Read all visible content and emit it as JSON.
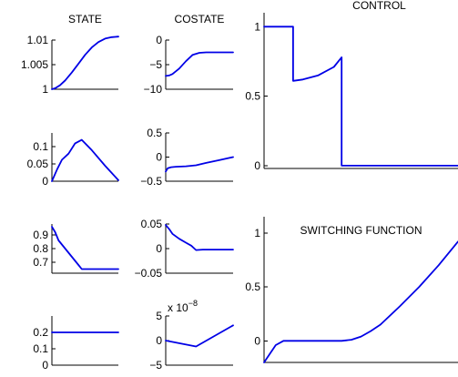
{
  "chart_data": [
    {
      "type": "line",
      "panel": "state_1",
      "title": "STATE",
      "xlim": [
        0,
        1
      ],
      "ylim": [
        1,
        1.01
      ],
      "yticks": [
        {
          "v": 1,
          "label": "1"
        },
        {
          "v": 1.005,
          "label": "1.005"
        },
        {
          "v": 1.01,
          "label": "1.01"
        }
      ],
      "series": [
        {
          "x": [
            0,
            0.05,
            0.12,
            0.2,
            0.3,
            0.4,
            0.5,
            0.6,
            0.7,
            0.8,
            0.9,
            1
          ],
          "y": [
            1.0,
            1.0002,
            1.0008,
            1.0018,
            1.0034,
            1.0052,
            1.007,
            1.0085,
            1.0096,
            1.0103,
            1.0106,
            1.0107
          ]
        }
      ]
    },
    {
      "type": "line",
      "panel": "state_2",
      "title": "",
      "xlim": [
        0,
        1
      ],
      "ylim": [
        0,
        0.14
      ],
      "yticks": [
        {
          "v": 0,
          "label": "0"
        },
        {
          "v": 0.05,
          "label": "0.05"
        },
        {
          "v": 0.1,
          "label": "0.1"
        }
      ],
      "series": [
        {
          "x": [
            0,
            0.08,
            0.15,
            0.25,
            0.35,
            0.45,
            0.6,
            0.8,
            1
          ],
          "y": [
            0,
            0.035,
            0.062,
            0.08,
            0.11,
            0.12,
            0.09,
            0.045,
            0.003
          ]
        }
      ]
    },
    {
      "type": "line",
      "panel": "state_3",
      "title": "",
      "xlim": [
        0,
        1
      ],
      "ylim": [
        0.62,
        0.98
      ],
      "yticks": [
        {
          "v": 0.7,
          "label": "0.7"
        },
        {
          "v": 0.8,
          "label": "0.8"
        },
        {
          "v": 0.9,
          "label": "0.9"
        }
      ],
      "series": [
        {
          "x": [
            0,
            0.05,
            0.1,
            0.2,
            0.3,
            0.4,
            0.45,
            0.6,
            0.8,
            1
          ],
          "y": [
            0.96,
            0.92,
            0.86,
            0.8,
            0.74,
            0.68,
            0.65,
            0.65,
            0.65,
            0.65
          ]
        }
      ]
    },
    {
      "type": "line",
      "panel": "state_4",
      "title": "",
      "xlim": [
        0,
        1
      ],
      "ylim": [
        0,
        0.3
      ],
      "yticks": [
        {
          "v": 0,
          "label": "0"
        },
        {
          "v": 0.1,
          "label": "0.1"
        },
        {
          "v": 0.2,
          "label": "0.2"
        }
      ],
      "series": [
        {
          "x": [
            0,
            1
          ],
          "y": [
            0.2,
            0.2
          ]
        }
      ]
    },
    {
      "type": "line",
      "panel": "costate_1",
      "title": "COSTATE",
      "xlim": [
        0,
        1
      ],
      "ylim": [
        -10,
        0
      ],
      "yticks": [
        {
          "v": -10,
          "label": "−10"
        },
        {
          "v": -5,
          "label": "−5"
        },
        {
          "v": 0,
          "label": "0"
        }
      ],
      "series": [
        {
          "x": [
            0,
            0.05,
            0.1,
            0.2,
            0.3,
            0.4,
            0.5,
            0.6,
            0.8,
            1
          ],
          "y": [
            -7.3,
            -7.2,
            -6.9,
            -5.8,
            -4.3,
            -3.0,
            -2.6,
            -2.5,
            -2.5,
            -2.5
          ]
        }
      ]
    },
    {
      "type": "line",
      "panel": "costate_2",
      "title": "",
      "xlim": [
        0,
        1
      ],
      "ylim": [
        -0.5,
        0.5
      ],
      "yticks": [
        {
          "v": -0.5,
          "label": "−0.5"
        },
        {
          "v": 0,
          "label": "0"
        },
        {
          "v": 0.5,
          "label": "0.5"
        }
      ],
      "series": [
        {
          "x": [
            0,
            0.03,
            0.08,
            0.15,
            0.3,
            0.45,
            0.6,
            0.8,
            1
          ],
          "y": [
            -0.3,
            -0.23,
            -0.21,
            -0.2,
            -0.19,
            -0.17,
            -0.12,
            -0.06,
            0.0
          ]
        }
      ]
    },
    {
      "type": "line",
      "panel": "costate_3",
      "title": "",
      "xlim": [
        0,
        1
      ],
      "ylim": [
        -0.05,
        0.05
      ],
      "yticks": [
        {
          "v": -0.05,
          "label": "−0.05"
        },
        {
          "v": 0,
          "label": "0"
        },
        {
          "v": 0.05,
          "label": "0.05"
        }
      ],
      "series": [
        {
          "x": [
            0,
            0.05,
            0.1,
            0.2,
            0.3,
            0.38,
            0.45,
            0.55,
            0.7,
            0.85,
            1
          ],
          "y": [
            0.048,
            0.04,
            0.03,
            0.02,
            0.012,
            0.006,
            -0.003,
            -0.002,
            -0.002,
            -0.002,
            -0.002
          ]
        }
      ]
    },
    {
      "type": "line",
      "panel": "costate_4",
      "title": "",
      "multiplier_label": "x 10",
      "multiplier_exponent": "−8",
      "xlim": [
        0,
        1
      ],
      "ylim": [
        -5,
        5
      ],
      "yticks": [
        {
          "v": -5,
          "label": "−5"
        },
        {
          "v": 0,
          "label": "0"
        },
        {
          "v": 5,
          "label": "5"
        }
      ],
      "series": [
        {
          "x": [
            0,
            0.45,
            1
          ],
          "y": [
            0,
            -1.2,
            3.1
          ]
        }
      ]
    },
    {
      "type": "line",
      "panel": "control",
      "title": "CONTROL",
      "xlim": [
        0,
        1
      ],
      "ylim": [
        -0.02,
        1.1
      ],
      "yticks": [
        {
          "v": 0,
          "label": "0"
        },
        {
          "v": 0.5,
          "label": "0.5"
        },
        {
          "v": 1,
          "label": "1"
        }
      ],
      "series": [
        {
          "x": [
            0,
            0.15,
            0.15,
            0.2,
            0.28,
            0.36,
            0.4,
            0.4,
            0.6,
            0.8,
            1
          ],
          "y": [
            1,
            1,
            0.61,
            0.62,
            0.65,
            0.71,
            0.78,
            0,
            0,
            0,
            0
          ]
        }
      ]
    },
    {
      "type": "line",
      "panel": "switching",
      "title": "SWITCHING FUNCTION",
      "xlim": [
        0,
        1
      ],
      "ylim": [
        -0.2,
        1.15
      ],
      "yticks": [
        {
          "v": 0,
          "label": "0"
        },
        {
          "v": 0.5,
          "label": "0.5"
        },
        {
          "v": 1,
          "label": "1"
        }
      ],
      "series": [
        {
          "x": [
            0,
            0.03,
            0.06,
            0.1,
            0.15,
            0.25,
            0.4,
            0.45,
            0.5,
            0.55,
            0.6,
            0.7,
            0.8,
            0.9,
            1
          ],
          "y": [
            -0.2,
            -0.12,
            -0.04,
            0.0,
            0.0,
            0.0,
            0.0,
            0.01,
            0.04,
            0.09,
            0.15,
            0.32,
            0.5,
            0.7,
            0.92
          ]
        }
      ]
    }
  ]
}
